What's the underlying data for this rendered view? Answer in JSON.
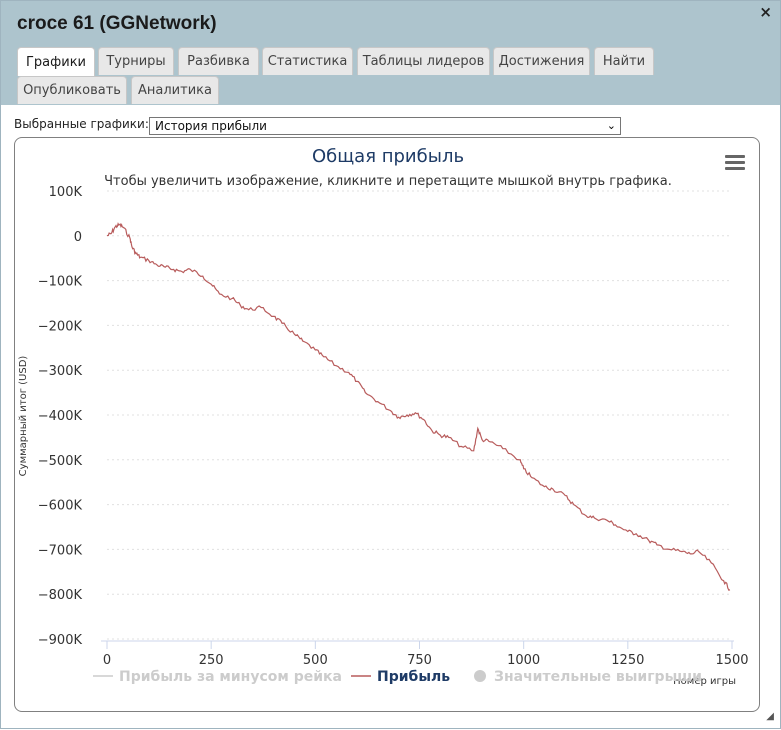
{
  "window": {
    "title": "croce 61 (GGNetwork)",
    "close_label": "×",
    "resize_label": "◢"
  },
  "tabs": [
    {
      "label": "Графики",
      "active": true
    },
    {
      "label": "Турниры",
      "active": false
    },
    {
      "label": "Разбивка",
      "active": false
    },
    {
      "label": "Статистика",
      "active": false
    },
    {
      "label": "Таблицы лидеров",
      "active": false
    },
    {
      "label": "Достижения",
      "active": false
    },
    {
      "label": "Найти",
      "active": false
    },
    {
      "label": "Опубликовать",
      "active": false
    },
    {
      "label": "Аналитика",
      "active": false
    }
  ],
  "graph_selector": {
    "label": "Выбранные графики:",
    "selected": "История прибыли"
  },
  "colors": {
    "profit_line": "#b85c5c",
    "title_text": "#1e3b66",
    "legend_inactive": "#cccccc",
    "grid": "#e0e0e0"
  },
  "chart_data": {
    "type": "line",
    "title": "Общая прибыль",
    "subtitle": "Чтобы увеличить изображение, кликните и перетащите мышкой внутрь графика.",
    "xlabel": "Номер игры",
    "ylabel": "Суммарный итог (USD)",
    "xlim": [
      0,
      1500
    ],
    "ylim": [
      -900000,
      100000
    ],
    "x_ticks": [
      "0",
      "250",
      "500",
      "750",
      "1000",
      "1250",
      "1500"
    ],
    "y_ticks": [
      "100K",
      "0",
      "−100K",
      "−200K",
      "−300K",
      "−400K",
      "−500K",
      "−600K",
      "−700K",
      "−800K",
      "−900K"
    ],
    "series": [
      {
        "name": "Прибыль за минусом рейка",
        "visible": false,
        "values": []
      },
      {
        "name": "Прибыль",
        "visible": true,
        "x": [
          0,
          10,
          20,
          30,
          40,
          55,
          60,
          70,
          80,
          100,
          120,
          140,
          160,
          180,
          200,
          230,
          250,
          270,
          300,
          320,
          340,
          370,
          400,
          420,
          450,
          470,
          500,
          520,
          550,
          580,
          600,
          620,
          650,
          680,
          700,
          720,
          740,
          760,
          780,
          800,
          820,
          850,
          880,
          890,
          900,
          920,
          950,
          990,
          1000,
          1020,
          1050,
          1070,
          1100,
          1120,
          1150,
          1170,
          1200,
          1220,
          1250,
          1270,
          1300,
          1320,
          1350,
          1380,
          1400,
          1420,
          1450,
          1480,
          1495
        ],
        "values": [
          0,
          5000,
          20000,
          25000,
          18000,
          -5000,
          -25000,
          -40000,
          -48000,
          -55000,
          -65000,
          -70000,
          -75000,
          -80000,
          -75000,
          -90000,
          -108000,
          -130000,
          -140000,
          -155000,
          -165000,
          -160000,
          -180000,
          -195000,
          -220000,
          -235000,
          -255000,
          -270000,
          -290000,
          -305000,
          -325000,
          -350000,
          -370000,
          -390000,
          -405000,
          -400000,
          -395000,
          -410000,
          -435000,
          -445000,
          -450000,
          -470000,
          -480000,
          -430000,
          -455000,
          -460000,
          -475000,
          -500000,
          -520000,
          -540000,
          -560000,
          -565000,
          -580000,
          -600000,
          -625000,
          -630000,
          -635000,
          -645000,
          -660000,
          -665000,
          -680000,
          -690000,
          -700000,
          -705000,
          -710000,
          -705000,
          -730000,
          -770000,
          -790000
        ]
      },
      {
        "name": "Значительные выигрыши",
        "visible": false,
        "values": []
      }
    ],
    "legend": "bottom-center"
  }
}
